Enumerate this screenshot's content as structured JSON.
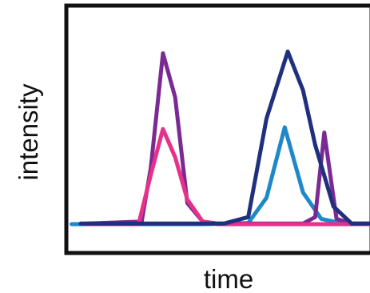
{
  "chart_data": {
    "type": "line",
    "title": "",
    "xlabel": "time",
    "ylabel": "intensity",
    "xlim": [
      0,
      100
    ],
    "ylim": [
      0,
      100
    ],
    "grid": false,
    "legend": "none",
    "x_ticks": [],
    "y_ticks": [],
    "series": [
      {
        "color": "#1E88C8",
        "x": [
          2,
          20,
          45,
          60,
          66,
          72,
          78,
          84,
          92,
          100
        ],
        "y": [
          0,
          0,
          0,
          0.6,
          15,
          55,
          18,
          3,
          0,
          0
        ]
      },
      {
        "color": "#7B2A93",
        "x": [
          7,
          25,
          28,
          32,
          36,
          40,
          45,
          50,
          57,
          78,
          82,
          85,
          89,
          94,
          100
        ],
        "y": [
          0.3,
          1.5,
          32,
          97,
          72,
          12,
          1.5,
          0.3,
          0.3,
          0.3,
          4,
          52,
          3,
          0.3,
          0.3
        ]
      },
      {
        "color": "#E8308A",
        "x": [
          7,
          24,
          28,
          32,
          36,
          40,
          45,
          50,
          100
        ],
        "y": [
          0,
          0,
          28,
          54,
          38,
          14,
          1.5,
          0,
          0
        ]
      },
      {
        "color": "#20307E",
        "x": [
          5,
          45,
          52,
          60,
          66,
          73,
          78,
          82,
          88,
          94,
          100
        ],
        "y": [
          0.3,
          0.3,
          0.3,
          4,
          60,
          98,
          76,
          45,
          10,
          0.3,
          0.3
        ]
      }
    ]
  }
}
